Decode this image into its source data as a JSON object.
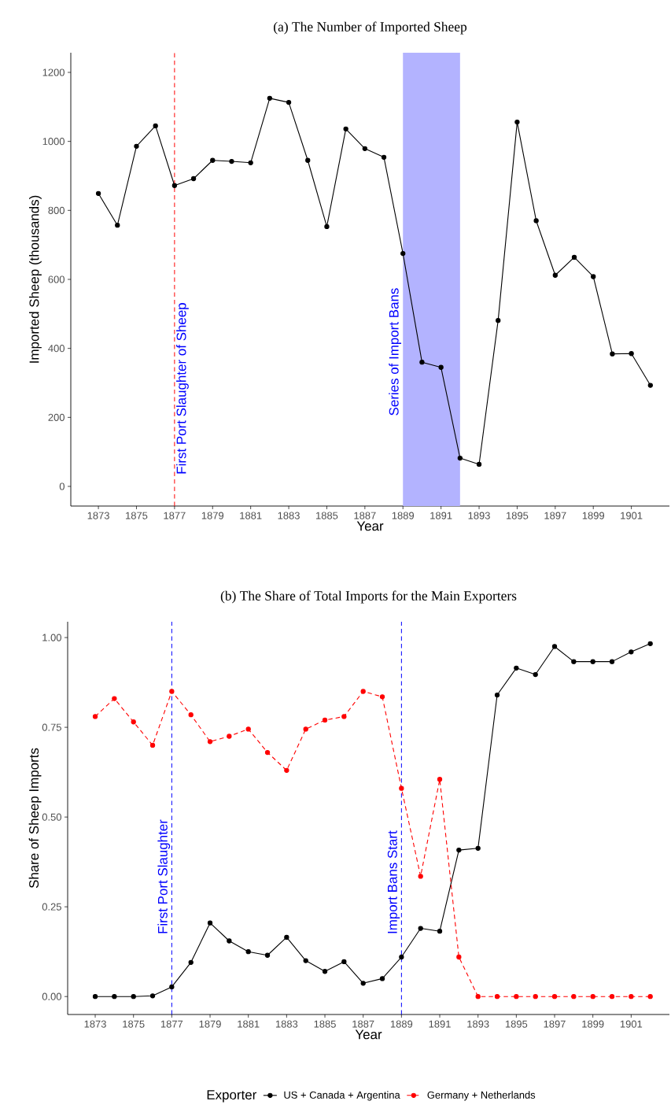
{
  "chart_data": [
    {
      "type": "line",
      "title": "(a) The Number of Imported Sheep",
      "xlabel": "Year",
      "ylabel": "Imported Sheep (thousands)",
      "x": [
        1873,
        1874,
        1875,
        1876,
        1877,
        1878,
        1879,
        1880,
        1881,
        1882,
        1883,
        1884,
        1885,
        1886,
        1887,
        1888,
        1889,
        1890,
        1891,
        1892,
        1893,
        1894,
        1895,
        1896,
        1897,
        1898,
        1899,
        1900,
        1901,
        1902
      ],
      "series": [
        {
          "color": "#000000",
          "line_style": "solid",
          "marker": "circle",
          "values": [
            849,
            757,
            986,
            1045,
            872,
            892,
            945,
            942,
            938,
            1125,
            1113,
            945,
            753,
            1036,
            979,
            954,
            675,
            360,
            345,
            82,
            64,
            481,
            1056,
            770,
            612,
            664,
            608,
            384,
            385,
            293
          ]
        }
      ],
      "xlim": [
        1871.55,
        1903
      ],
      "ylim": [
        -57,
        1257
      ],
      "xticks": [
        1873,
        1875,
        1877,
        1879,
        1881,
        1883,
        1885,
        1887,
        1889,
        1891,
        1893,
        1895,
        1897,
        1899,
        1901
      ],
      "yticks": [
        0,
        200,
        400,
        600,
        800,
        1000,
        1200
      ],
      "ref_lines": [
        {
          "axis": "x",
          "value": 1877,
          "label": "First Port Slaughter of Sheep",
          "color": "#ff0000",
          "line_style": "dashed"
        }
      ],
      "bands": [
        {
          "axis": "x",
          "from": 1889,
          "to": 1892,
          "label": "Series of Import Bans",
          "color": "#b3b3ff"
        }
      ],
      "legend": false
    },
    {
      "type": "line",
      "title": "(b) The Share of Total Imports for the Main Exporters",
      "xlabel": "Year",
      "ylabel": "Share of Sheep Imports",
      "legend_title": "Exporter",
      "x": [
        1873,
        1874,
        1875,
        1876,
        1877,
        1878,
        1879,
        1880,
        1881,
        1882,
        1883,
        1884,
        1885,
        1886,
        1887,
        1888,
        1889,
        1890,
        1891,
        1892,
        1893,
        1894,
        1895,
        1896,
        1897,
        1898,
        1899,
        1900,
        1901,
        1902
      ],
      "series": [
        {
          "name": "US + Canada + Argentina",
          "color": "#000000",
          "line_style": "solid",
          "marker": "circle",
          "values": [
            0,
            0,
            0,
            0.002,
            0.027,
            0.095,
            0.205,
            0.155,
            0.125,
            0.115,
            0.165,
            0.1,
            0.07,
            0.097,
            0.037,
            0.05,
            0.11,
            0.19,
            0.182,
            0.408,
            0.413,
            0.84,
            0.915,
            0.897,
            0.975,
            0.933,
            0.933,
            0.933,
            0.96,
            0.983
          ]
        },
        {
          "name": "Germany + Netherlands",
          "color": "#ff0000",
          "line_style": "dashed",
          "marker": "circle",
          "values": [
            0.78,
            0.83,
            0.765,
            0.7,
            0.85,
            0.785,
            0.71,
            0.725,
            0.745,
            0.68,
            0.63,
            0.745,
            0.77,
            0.78,
            0.85,
            0.835,
            0.58,
            0.335,
            0.605,
            0.11,
            0,
            0,
            0,
            0,
            0,
            0,
            0,
            0,
            0,
            0
          ]
        }
      ],
      "xlim": [
        1871.56,
        1903
      ],
      "ylim": [
        -0.05,
        1.044
      ],
      "xticks": [
        1873,
        1875,
        1877,
        1879,
        1881,
        1883,
        1885,
        1887,
        1889,
        1891,
        1893,
        1895,
        1897,
        1899,
        1901
      ],
      "yticks": [
        {
          "value": 0,
          "label": "0.00"
        },
        {
          "value": 0.25,
          "label": "0.25"
        },
        {
          "value": 0.5,
          "label": "0.50"
        },
        {
          "value": 0.75,
          "label": "0.75"
        },
        {
          "value": 1,
          "label": "1.00"
        }
      ],
      "ref_lines": [
        {
          "axis": "x",
          "value": 1877,
          "label": "First Port Slaughter",
          "color": "#0000ff",
          "line_style": "dashed"
        },
        {
          "axis": "x",
          "value": 1889,
          "label": "Import Bans Start",
          "color": "#0000ff",
          "line_style": "dashed"
        }
      ],
      "legend": "bottom"
    }
  ]
}
